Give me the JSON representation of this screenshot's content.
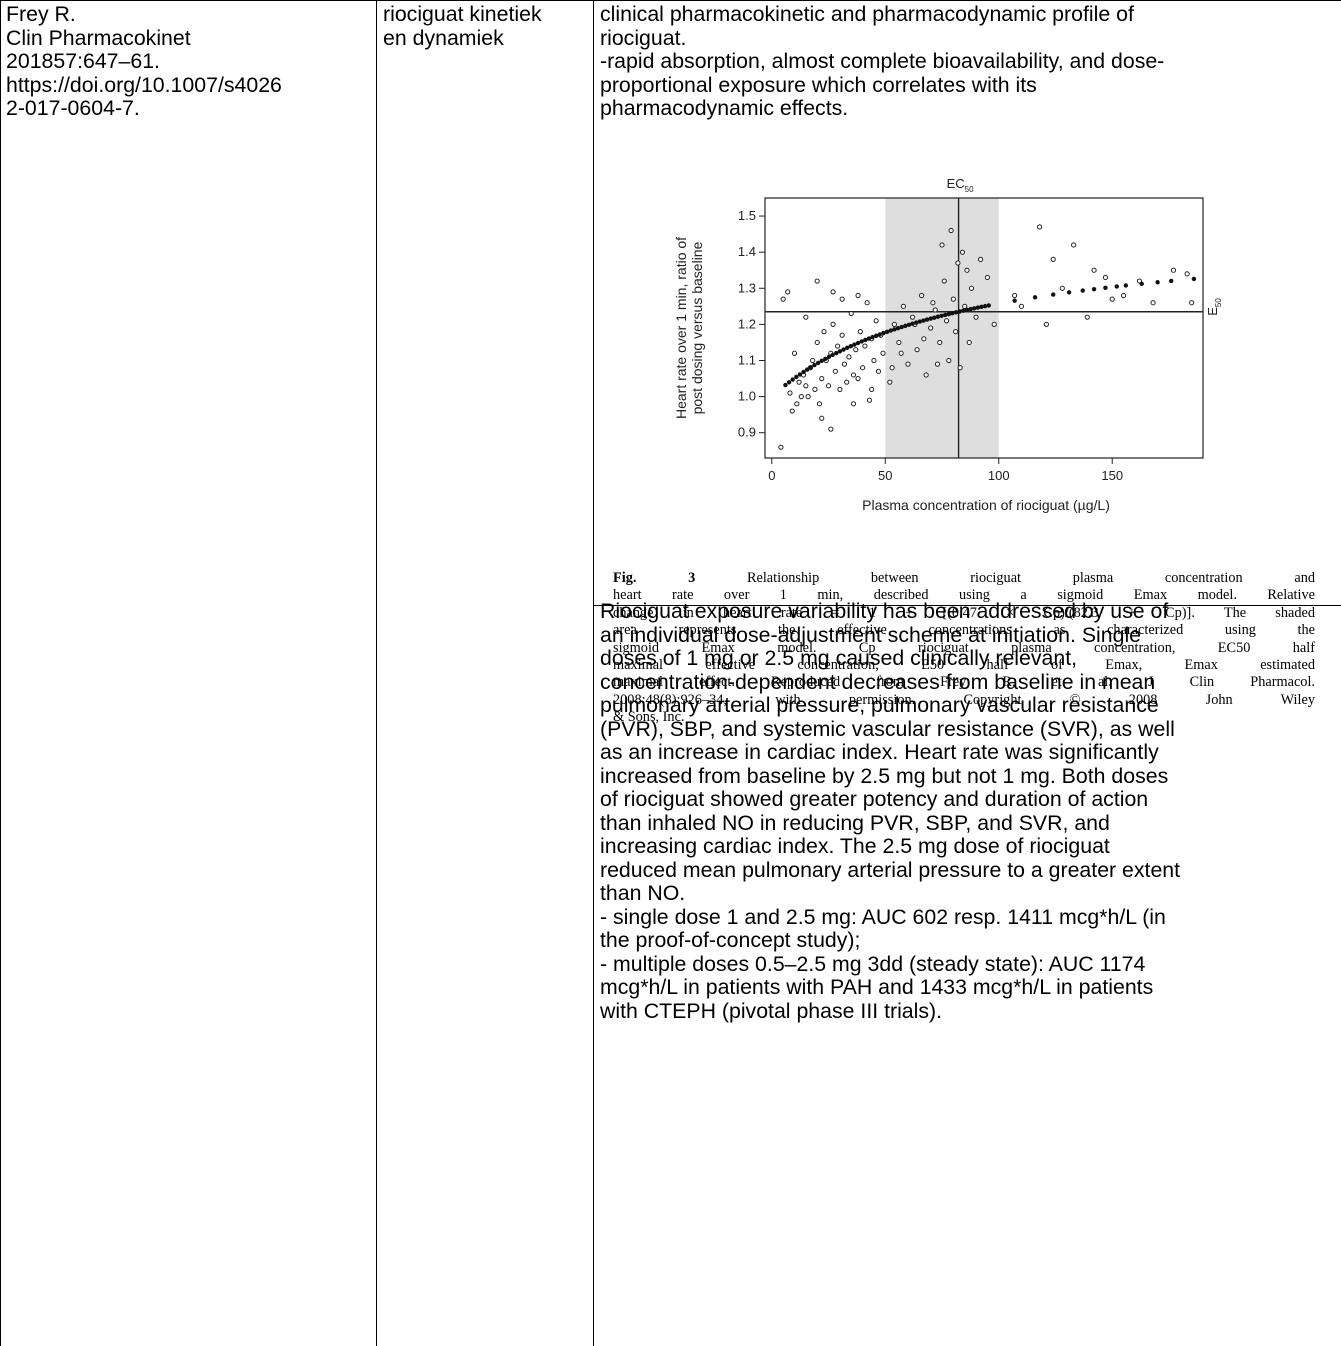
{
  "reference_cell": {
    "lines": [
      "Frey R.",
      "Clin Pharmacokinet",
      "201857:647–61.",
      "https://doi.org/10.1007/s4026",
      "2-017-0604-7."
    ]
  },
  "topic_cell": {
    "lines": [
      "riociguat kinetiek",
      "en dynamiek"
    ]
  },
  "summary_cell": {
    "intro_lines": [
      "clinical pharmacokinetic and pharmacodynamic profile of",
      "riociguat.",
      "-rapid absorption, almost complete bioavailability, and dose-",
      "proportional exposure which correlates with its",
      "pharmacodynamic effects."
    ],
    "body_lines": [
      "Riociguat exposure variability has been addressed by use of",
      "an individual dose-adjustment scheme at initiation. Single",
      "doses of 1 mg or 2.5 mg caused clinically relevant,",
      "concentration-dependent decreases from baseline in mean",
      "pulmonary arterial pressure, pulmonary vascular resistance",
      "(PVR), SBP, and systemic vascular resistance (SVR), as well",
      "as an increase in cardiac index. Heart rate was significantly",
      "increased from baseline by 2.5 mg but not 1 mg. Both doses",
      "of riociguat showed greater potency and duration of action",
      "than inhaled NO in reducing PVR, SBP, and SVR, and",
      "increasing cardiac index. The 2.5 mg dose of riociguat",
      "reduced mean pulmonary arterial pressure to a greater extent",
      "than NO.",
      "- single dose 1 and 2.5 mg: AUC 602 resp. 1411 mcg*h/L (in",
      "the proof-of-concept study);",
      "- multiple doses 0.5–2.5 mg 3dd (steady state): AUC 1174",
      "mcg*h/L in patients with PAH and 1433 mcg*h/L in patients",
      "with CTEPH (pivotal phase III trials)."
    ]
  },
  "figure": {
    "caption_label": "Fig. 3",
    "caption_lines": [
      " Relationship between riociguat plasma concentration and",
      "heart rate over 1 min, described using a sigmoid Emax model. Relative",
      "change in heart rate = 1 + [(0.47 × Cp)/(82.3 + Cp)]. The shaded",
      "area represents the effective concentrations as characterized using the",
      "sigmoid Emax model. Cp riociguat plasma concentration, EC50 half",
      "maximal effective concentration, E50 half of Emax, Emax estimated",
      "maximal effect. Reproduced from Frey R, et al. J Clin Pharmacol.",
      "2008;48(8):926–34, with permission. Copyright © 2008 John Wiley",
      "& Sons, Inc."
    ]
  },
  "chart_data": {
    "type": "scatter",
    "title": "",
    "xlabel": "Plasma concentration of riociguat (µg/L)",
    "ylabel_lines": [
      "Heart rate over 1 min, ratio of",
      "post dosing versus baseline"
    ],
    "xlim": [
      -3,
      190
    ],
    "ylim": [
      0.83,
      1.55
    ],
    "xticks": [
      0,
      50,
      100,
      150
    ],
    "yticks": [
      0.9,
      1.0,
      1.1,
      1.2,
      1.3,
      1.4,
      1.5
    ],
    "ytick_labels": [
      "0.9",
      "1.0",
      "1.1",
      "1.2",
      "1.3",
      "1.4",
      "1.5"
    ],
    "shaded_region": [
      50,
      100
    ],
    "ec50": {
      "x": 82.3,
      "label": "EC",
      "sub": "50"
    },
    "e50": {
      "y": 1.235,
      "label": "E",
      "sub": "50"
    },
    "model": {
      "emax": 0.47,
      "ec50": 82.3
    },
    "observed": [
      [
        4,
        0.86
      ],
      [
        5,
        1.27
      ],
      [
        7,
        1.29
      ],
      [
        8,
        1.01
      ],
      [
        9,
        0.96
      ],
      [
        10,
        1.12
      ],
      [
        11,
        0.98
      ],
      [
        12,
        1.04
      ],
      [
        13,
        1.0
      ],
      [
        14,
        1.06
      ],
      [
        15,
        1.22
      ],
      [
        16,
        1.0
      ],
      [
        17,
        1.08
      ],
      [
        18,
        1.1
      ],
      [
        19,
        1.02
      ],
      [
        20,
        1.15
      ],
      [
        21,
        0.98
      ],
      [
        22,
        1.05
      ],
      [
        23,
        1.18
      ],
      [
        24,
        1.1
      ],
      [
        25,
        1.03
      ],
      [
        26,
        1.12
      ],
      [
        27,
        1.2
      ],
      [
        28,
        1.07
      ],
      [
        29,
        1.14
      ],
      [
        30,
        1.02
      ],
      [
        31,
        1.17
      ],
      [
        32,
        1.09
      ],
      [
        33,
        1.04
      ],
      [
        34,
        1.11
      ],
      [
        35,
        1.23
      ],
      [
        36,
        1.06
      ],
      [
        37,
        1.13
      ],
      [
        38,
        1.05
      ],
      [
        39,
        1.18
      ],
      [
        40,
        1.08
      ],
      [
        41,
        1.14
      ],
      [
        42,
        1.26
      ],
      [
        43,
        0.99
      ],
      [
        44,
        1.16
      ],
      [
        45,
        1.1
      ],
      [
        46,
        1.21
      ],
      [
        47,
        1.07
      ],
      [
        48,
        1.17
      ],
      [
        49,
        1.12
      ],
      [
        52,
        1.04
      ],
      [
        54,
        1.2
      ],
      [
        56,
        1.15
      ],
      [
        58,
        1.25
      ],
      [
        60,
        1.09
      ],
      [
        62,
        1.22
      ],
      [
        64,
        1.13
      ],
      [
        66,
        1.28
      ],
      [
        68,
        1.06
      ],
      [
        70,
        1.19
      ],
      [
        72,
        1.24
      ],
      [
        74,
        1.15
      ],
      [
        75,
        1.42
      ],
      [
        76,
        1.32
      ],
      [
        77,
        1.21
      ],
      [
        78,
        1.1
      ],
      [
        79,
        1.46
      ],
      [
        80,
        1.27
      ],
      [
        81,
        1.18
      ],
      [
        82,
        1.37
      ],
      [
        83,
        1.08
      ],
      [
        84,
        1.4
      ],
      [
        85,
        1.25
      ],
      [
        86,
        1.35
      ],
      [
        88,
        1.3
      ],
      [
        90,
        1.22
      ],
      [
        92,
        1.38
      ],
      [
        95,
        1.33
      ],
      [
        98,
        1.2
      ],
      [
        107,
        1.28
      ],
      [
        110,
        1.25
      ],
      [
        118,
        1.47
      ],
      [
        121,
        1.2
      ],
      [
        124,
        1.38
      ],
      [
        128,
        1.3
      ],
      [
        133,
        1.42
      ],
      [
        139,
        1.22
      ],
      [
        142,
        1.35
      ],
      [
        150,
        1.27
      ],
      [
        155,
        1.28
      ],
      [
        162,
        1.32
      ],
      [
        168,
        1.26
      ],
      [
        177,
        1.35
      ],
      [
        183,
        1.34
      ],
      [
        185,
        1.26
      ],
      [
        147,
        1.33
      ],
      [
        20,
        1.32
      ],
      [
        27,
        1.29
      ],
      [
        31,
        1.27
      ],
      [
        38,
        1.28
      ],
      [
        15,
        1.03
      ],
      [
        22,
        0.94
      ],
      [
        26,
        0.91
      ],
      [
        36,
        0.98
      ],
      [
        44,
        1.02
      ],
      [
        53,
        1.08
      ],
      [
        57,
        1.12
      ],
      [
        63,
        1.2
      ],
      [
        67,
        1.16
      ],
      [
        71,
        1.26
      ],
      [
        73,
        1.09
      ],
      [
        87,
        1.15
      ]
    ]
  }
}
